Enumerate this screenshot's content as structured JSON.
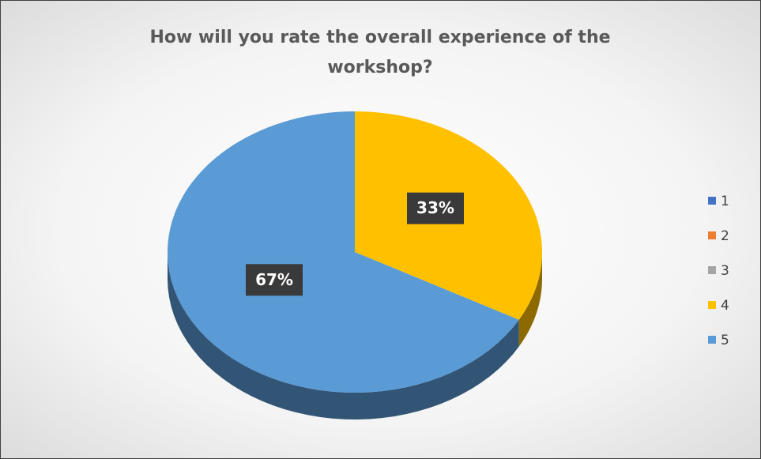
{
  "chart_data": {
    "type": "pie",
    "title": "How will you rate the overall experience of the workshop?",
    "categories": [
      "1",
      "2",
      "3",
      "4",
      "5"
    ],
    "values": [
      0,
      0,
      0,
      33,
      67
    ],
    "value_labels": [
      null,
      null,
      null,
      "33%",
      "67%"
    ],
    "colors": [
      "#4472c4",
      "#ed7d31",
      "#a5a5a5",
      "#ffc000",
      "#5b9bd5"
    ],
    "legend": "right"
  }
}
